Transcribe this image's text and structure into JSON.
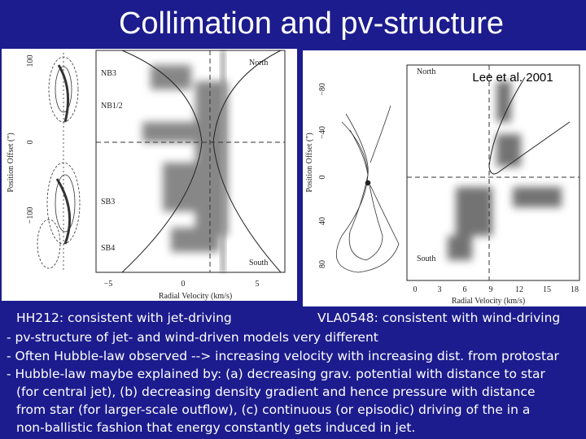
{
  "title": "Collimation and pv-structure",
  "figure": {
    "credit": "Lee et al. 2001",
    "left_panel": {
      "y_label": "Position Offset (\")",
      "yticks": [
        "100",
        "0",
        "−100"
      ],
      "x_label": "Radial Velocity (km/s)",
      "xticks": [
        "−5",
        "0",
        "5"
      ],
      "labels": [
        "NB3",
        "NB1/2",
        "SB3",
        "SB4",
        "North",
        "South"
      ]
    },
    "right_panel": {
      "y_label": "Position Offset (\")",
      "yticks": [
        "−80",
        "−40",
        "0",
        "40",
        "80"
      ],
      "x_label": "Radial Velocity (km/s)",
      "xticks": [
        "0",
        "3",
        "6",
        "9",
        "12",
        "15",
        "18"
      ],
      "labels": [
        "North",
        "South"
      ]
    }
  },
  "captions": [
    "HH212: consistent with jet-driving",
    "VLA0548: consistent with wind-driving"
  ],
  "notes": [
    "- pv-structure of jet- and wind-driven models very different",
    "- Often Hubble-law observed --> increasing velocity with increasing dist. from protostar",
    "- Hubble-law maybe explained by: (a) decreasing grav. potential with distance to star",
    "(for central jet), (b) decreasing density gradient and hence pressure with distance",
    "from star (for larger-scale outflow), (c) continuous (or episodic) driving of the in a",
    "non-ballistic fashion that energy constantly gets induced in jet."
  ]
}
